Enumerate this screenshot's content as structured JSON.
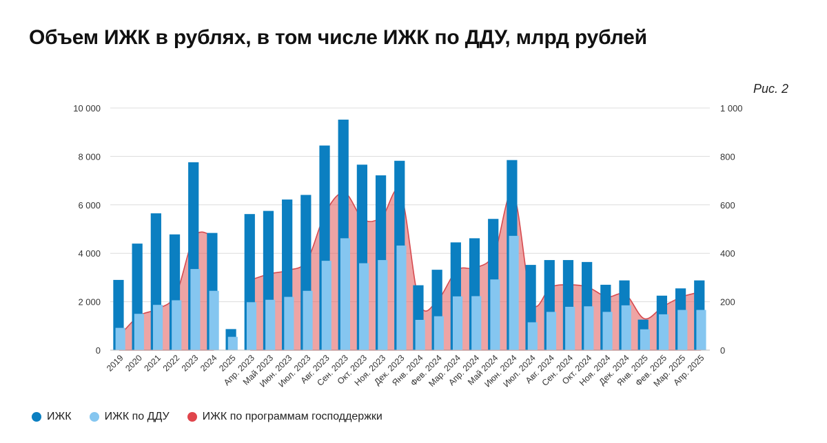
{
  "chart_data": {
    "type": "bar",
    "title": "Объем ИЖК в рублях, в том числе ИЖК по ДДУ, млрд рублей",
    "figure_label": "Рис. 2",
    "categories": [
      "2019",
      "2020",
      "2021",
      "2022",
      "2023",
      "2024",
      "2025",
      "Апр. 2023",
      "Май 2023",
      "Июн. 2023",
      "Июл. 2023",
      "Авг. 2023",
      "Сен. 2023",
      "Окт. 2023",
      "Ноя. 2023",
      "Дек. 2023",
      "Янв. 2024",
      "Фев. 2024",
      "Мар. 2024",
      "Апр. 2024",
      "Май 2024",
      "Июн. 2024",
      "Июл. 2024",
      "Авг. 2024",
      "Сен. 2024",
      "Окт. 2024",
      "Ноя. 2024",
      "Дек. 2024",
      "Янв. 2025",
      "Фев. 2025",
      "Мар. 2025",
      "Апр. 2025"
    ],
    "series": [
      {
        "name": "ИЖК",
        "axis": "left",
        "color": "#0b7fc1",
        "values": [
          2900,
          4400,
          5650,
          4780,
          7760,
          4840,
          870,
          5620,
          5750,
          6220,
          6410,
          8450,
          9520,
          7660,
          7220,
          7820,
          2680,
          3320,
          4450,
          4620,
          5420,
          7850,
          3520,
          3720,
          3720,
          3640,
          2700,
          2880,
          1260,
          2250,
          2550,
          2880
        ]
      },
      {
        "name": "ИЖК по ДДУ",
        "axis": "left",
        "color": "#85c6f0",
        "values": [
          920,
          1500,
          1870,
          2060,
          3350,
          2450,
          550,
          1980,
          2080,
          2200,
          2450,
          3690,
          4620,
          3590,
          3720,
          4320,
          1250,
          1400,
          2220,
          2230,
          2920,
          4720,
          1150,
          1580,
          1790,
          1810,
          1580,
          1850,
          860,
          1480,
          1660,
          1660
        ]
      },
      {
        "name": "ИЖК по программам господдержки",
        "axis": "right",
        "color": "#e05a5a",
        "style": "area",
        "values": [
          60,
          140,
          170,
          230,
          470,
          470,
          0,
          290,
          315,
          330,
          370,
          570,
          650,
          540,
          550,
          650,
          195,
          210,
          330,
          340,
          400,
          650,
          200,
          260,
          270,
          260,
          220,
          230,
          130,
          180,
          220,
          240
        ]
      }
    ],
    "ylim_left": [
      0,
      10000
    ],
    "ylim_right": [
      0,
      1000
    ],
    "yticks_left": [
      "0",
      "2 000",
      "4 000",
      "6 000",
      "8 000",
      "10 000"
    ],
    "yticks_right": [
      "0",
      "200",
      "400",
      "600",
      "800",
      "1 000"
    ],
    "grid": true,
    "legend_position": "bottom-left"
  }
}
